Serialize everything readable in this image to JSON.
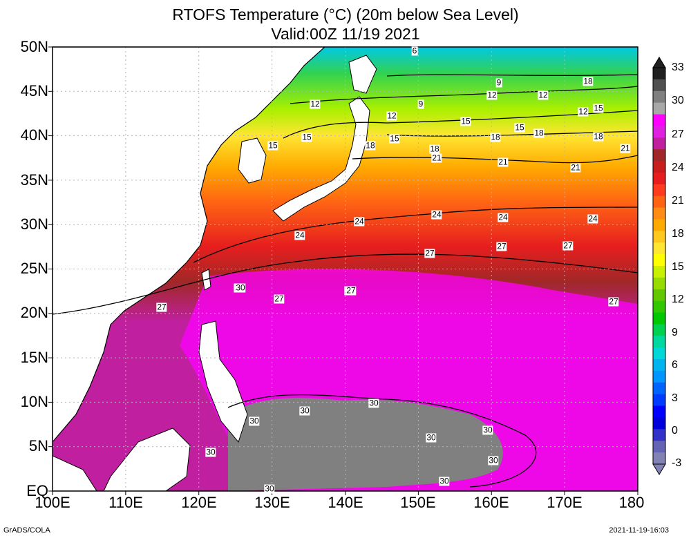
{
  "title": "RTOFS Temperature (°C) (20m below Sea Level)",
  "valid": "Valid:00Z 11/19 2021",
  "footer_left": "GrADS/COLA",
  "footer_right": "2021-11-19-16:03",
  "lat_labels": [
    "50N",
    "45N",
    "40N",
    "35N",
    "30N",
    "25N",
    "20N",
    "15N",
    "10N",
    "5N",
    "EQ"
  ],
  "lon_labels": [
    "100E",
    "110E",
    "120E",
    "130E",
    "140E",
    "150E",
    "160E",
    "170E",
    "180"
  ],
  "colorbar": {
    "labels": [
      "33",
      "30",
      "27",
      "24",
      "21",
      "18",
      "15",
      "12",
      "9",
      "6",
      "3",
      "0",
      "-3"
    ],
    "colors": [
      "#202020",
      "#505050",
      "#808080",
      "#a8a8a8",
      "#ff00ff",
      "#e020e0",
      "#c020a0",
      "#a02828",
      "#c81e1e",
      "#e61e1e",
      "#ff3c1e",
      "#ff6414",
      "#ff8c14",
      "#ffaa00",
      "#ffc81e",
      "#ffe632",
      "#ffff00",
      "#c8f000",
      "#96dc00",
      "#64c800",
      "#32c800",
      "#00c800",
      "#00d250",
      "#00d8a0",
      "#00d8d8",
      "#00b4f0",
      "#0096ff",
      "#0064ff",
      "#003cff",
      "#0000ff",
      "#0000dc",
      "#3232c8",
      "#6464b4",
      "#8282b4"
    ]
  },
  "contour_labels": [
    "6",
    "9",
    "9",
    "12",
    "12",
    "12",
    "12",
    "12",
    "15",
    "15",
    "15",
    "15",
    "15",
    "15",
    "18",
    "18",
    "18",
    "18",
    "18",
    "18",
    "21",
    "21",
    "21",
    "21",
    "24",
    "24",
    "24",
    "24",
    "24",
    "27",
    "27",
    "27",
    "27",
    "27",
    "27",
    "27",
    "27",
    "27",
    "30",
    "30",
    "30",
    "30",
    "30",
    "30",
    "30",
    "30",
    "30"
  ]
}
